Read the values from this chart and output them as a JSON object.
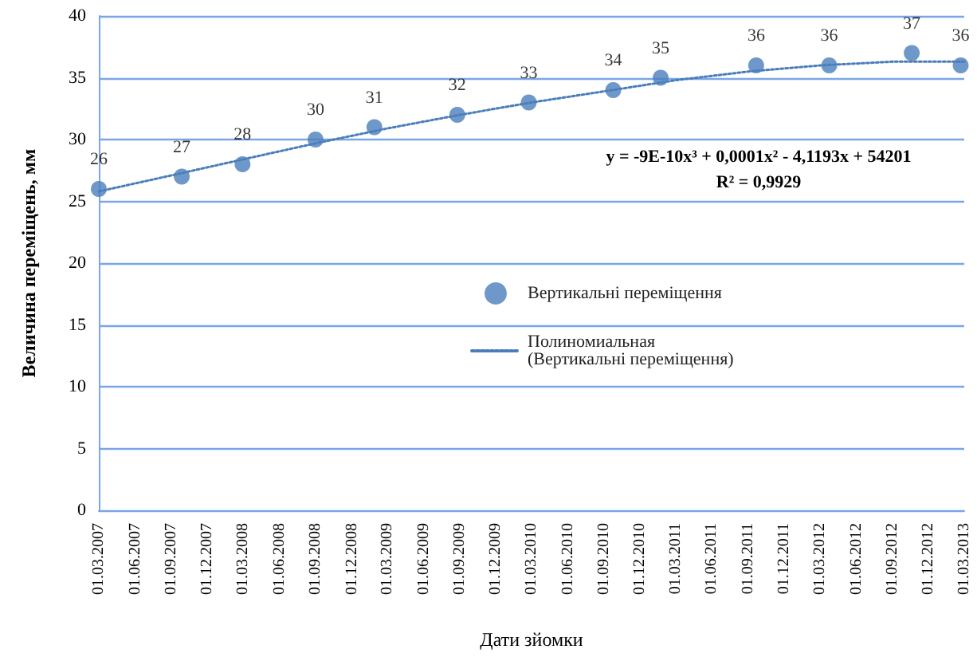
{
  "chart_data": {
    "type": "scatter",
    "xlabel": "Дати зйомки",
    "ylabel": "Величина переміщень, мм",
    "xlim": [
      "2007-03-01",
      "2013-03-01"
    ],
    "ylim": [
      0,
      40
    ],
    "yticks": [
      0,
      5,
      10,
      15,
      20,
      25,
      30,
      35,
      40
    ],
    "xticks": [
      {
        "value": "2007-03-01",
        "label": "01.03.2007"
      },
      {
        "value": "2007-06-01",
        "label": "01.06.2007"
      },
      {
        "value": "2007-09-01",
        "label": "01.09.2007"
      },
      {
        "value": "2007-12-01",
        "label": "01.12.2007"
      },
      {
        "value": "2008-03-01",
        "label": "01.03.2008"
      },
      {
        "value": "2008-06-01",
        "label": "01.06.2008"
      },
      {
        "value": "2008-09-01",
        "label": "01.09.2008"
      },
      {
        "value": "2008-12-01",
        "label": "01.12.2008"
      },
      {
        "value": "2009-03-01",
        "label": "01.03.2009"
      },
      {
        "value": "2009-06-01",
        "label": "01.06.2009"
      },
      {
        "value": "2009-09-01",
        "label": "01.09.2009"
      },
      {
        "value": "2009-12-01",
        "label": "01.12.2009"
      },
      {
        "value": "2010-03-01",
        "label": "01.03.2010"
      },
      {
        "value": "2010-06-01",
        "label": "01.06.2010"
      },
      {
        "value": "2010-09-01",
        "label": "01.09.2010"
      },
      {
        "value": "2010-12-01",
        "label": "01.12.2010"
      },
      {
        "value": "2011-03-01",
        "label": "01.03.2011"
      },
      {
        "value": "2011-06-01",
        "label": "01.06.2011"
      },
      {
        "value": "2011-09-01",
        "label": "01.09.2011"
      },
      {
        "value": "2011-12-01",
        "label": "01.12.2011"
      },
      {
        "value": "2012-03-01",
        "label": "01.03.2012"
      },
      {
        "value": "2012-06-01",
        "label": "01.06.2012"
      },
      {
        "value": "2012-09-01",
        "label": "01.09.2012"
      },
      {
        "value": "2012-12-01",
        "label": "01.12.2012"
      },
      {
        "value": "2013-03-01",
        "label": "01.03.2013"
      }
    ],
    "series": [
      {
        "name": "Вертикальні переміщення",
        "color": "#4a7ebb",
        "marker": "circle",
        "value_labels": [
          "26",
          "27",
          "28",
          "30",
          "31",
          "32",
          "33",
          "34",
          "35",
          "36",
          "36",
          "37",
          "36"
        ],
        "x": [
          "2007-03-01",
          "2007-09-27",
          "2008-02-28",
          "2008-08-31",
          "2009-01-27",
          "2009-08-25",
          "2010-02-22",
          "2010-09-24",
          "2011-01-22",
          "2011-09-21",
          "2012-03-24",
          "2012-10-19",
          "2013-02-20"
        ],
        "values": [
          26,
          27,
          28,
          30,
          31,
          32,
          33,
          34,
          35,
          36,
          36,
          37,
          36
        ]
      },
      {
        "name": "Полиномиальная\n(Вертикальні переміщення)",
        "type": "line",
        "color": "#4a7ebb",
        "marker": "none",
        "line_style": "dotted",
        "x": [
          "2007-03-01",
          "2007-09-01",
          "2008-03-01",
          "2008-09-01",
          "2009-03-01",
          "2009-09-01",
          "2010-03-01",
          "2010-09-01",
          "2011-03-01",
          "2011-09-01",
          "2012-03-01",
          "2012-09-01",
          "2013-03-01"
        ],
        "values": [
          25.8,
          27.1,
          28.4,
          29.7,
          30.9,
          32.0,
          33.0,
          33.9,
          34.8,
          35.5,
          36.0,
          36.3,
          36.3
        ]
      }
    ],
    "annotations": [
      "y = -9E-10x³ + 0,0001x² - 4,1193x + 54201",
      "R² = 0,9929"
    ],
    "grid": "y",
    "legend": "center"
  }
}
